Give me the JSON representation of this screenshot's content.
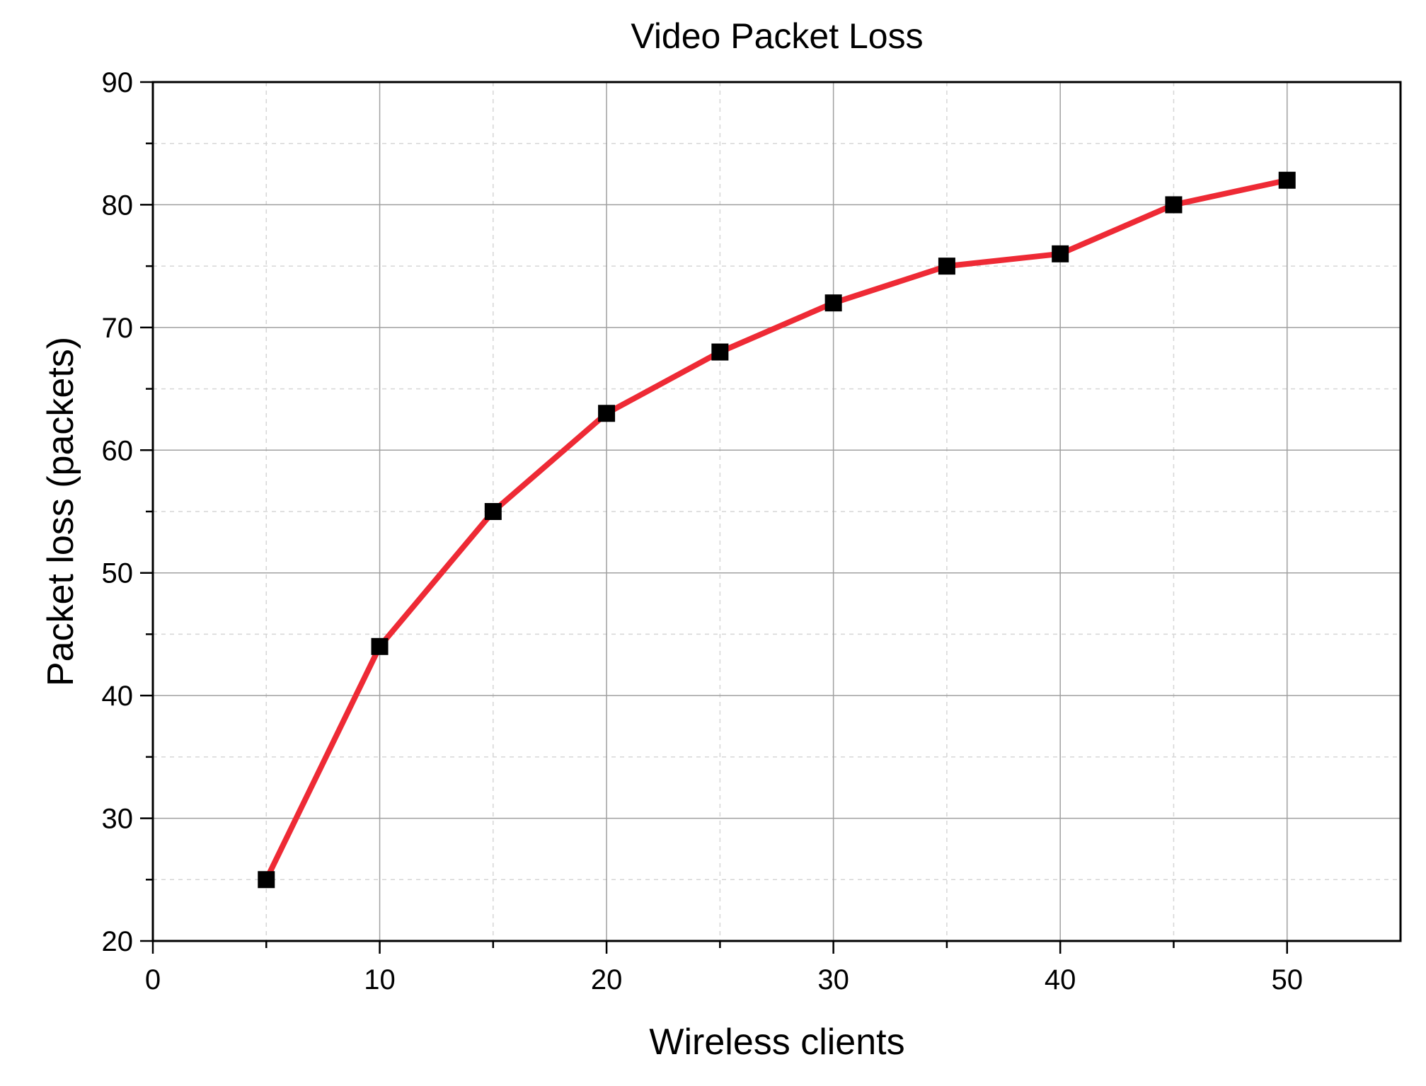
{
  "chart_data": {
    "type": "line",
    "title": "Video Packet Loss",
    "xlabel": "Wireless clients",
    "ylabel": "Packet loss (packets)",
    "xlim": [
      0,
      55
    ],
    "ylim": [
      20,
      90
    ],
    "xticks": [
      0,
      10,
      20,
      30,
      40,
      50
    ],
    "yticks": [
      20,
      30,
      40,
      50,
      60,
      70,
      80,
      90
    ],
    "grid": true,
    "series": [
      {
        "line_color": "#ee2a35",
        "marker_color": "#000000",
        "marker": "square",
        "x": [
          5,
          10,
          15,
          20,
          25,
          30,
          35,
          40,
          45,
          50
        ],
        "y": [
          25,
          44,
          55,
          63,
          68,
          72,
          75,
          76,
          80,
          82
        ]
      }
    ]
  }
}
